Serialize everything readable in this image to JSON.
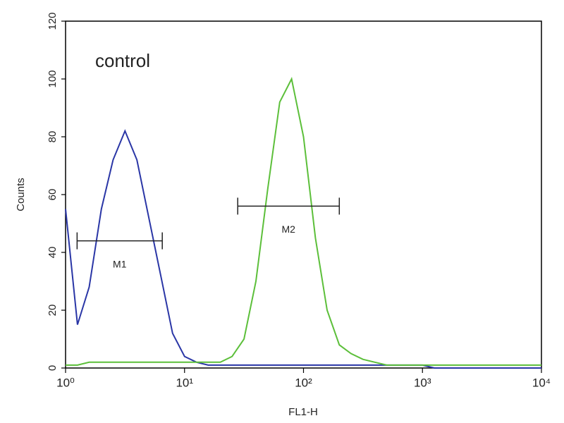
{
  "chart_data": {
    "type": "histogram-line",
    "annotation": "control",
    "xlabel": "FL1-H",
    "ylabel": "Counts",
    "xscale": "log",
    "xlim": [
      1,
      10000
    ],
    "xticks": [
      {
        "value": 1,
        "label": "10⁰"
      },
      {
        "value": 10,
        "label": "10¹"
      },
      {
        "value": 100,
        "label": "10²"
      },
      {
        "value": 1000,
        "label": "10³"
      },
      {
        "value": 10000,
        "label": "10⁴"
      }
    ],
    "ylim": [
      0,
      120
    ],
    "yticks": [
      0,
      20,
      40,
      60,
      80,
      100,
      120
    ],
    "x": [
      1,
      1.26,
      1.58,
      2,
      2.51,
      3.16,
      3.98,
      5.01,
      6.31,
      7.94,
      10,
      12.6,
      15.8,
      20,
      25.1,
      31.6,
      39.8,
      50.1,
      63.1,
      79.4,
      100,
      126,
      158,
      200,
      251,
      316,
      398,
      501,
      631,
      794,
      1000,
      1260,
      1580,
      2000,
      2510,
      3160,
      3980,
      5010,
      6310,
      7940,
      10000
    ],
    "series": [
      {
        "color": "#2a36a6",
        "values": [
          55,
          15,
          28,
          55,
          72,
          82,
          72,
          52,
          32,
          12,
          4,
          2,
          1,
          1,
          1,
          1,
          1,
          1,
          1,
          1,
          1,
          1,
          1,
          1,
          1,
          1,
          1,
          1,
          1,
          1,
          1,
          0,
          0,
          0,
          0,
          0,
          0,
          0,
          0,
          0,
          0
        ]
      },
      {
        "color": "#5cbf3a",
        "values": [
          1,
          1,
          2,
          2,
          2,
          2,
          2,
          2,
          2,
          2,
          2,
          2,
          2,
          2,
          4,
          10,
          30,
          62,
          92,
          100,
          80,
          45,
          20,
          8,
          5,
          3,
          2,
          1,
          1,
          1,
          1,
          1,
          1,
          1,
          1,
          1,
          1,
          1,
          1,
          1,
          1
        ]
      }
    ],
    "markers": [
      {
        "label": "M1",
        "range": [
          1.25,
          6.5
        ],
        "y": 44
      },
      {
        "label": "M2",
        "range": [
          28,
          200
        ],
        "y": 56
      }
    ]
  }
}
